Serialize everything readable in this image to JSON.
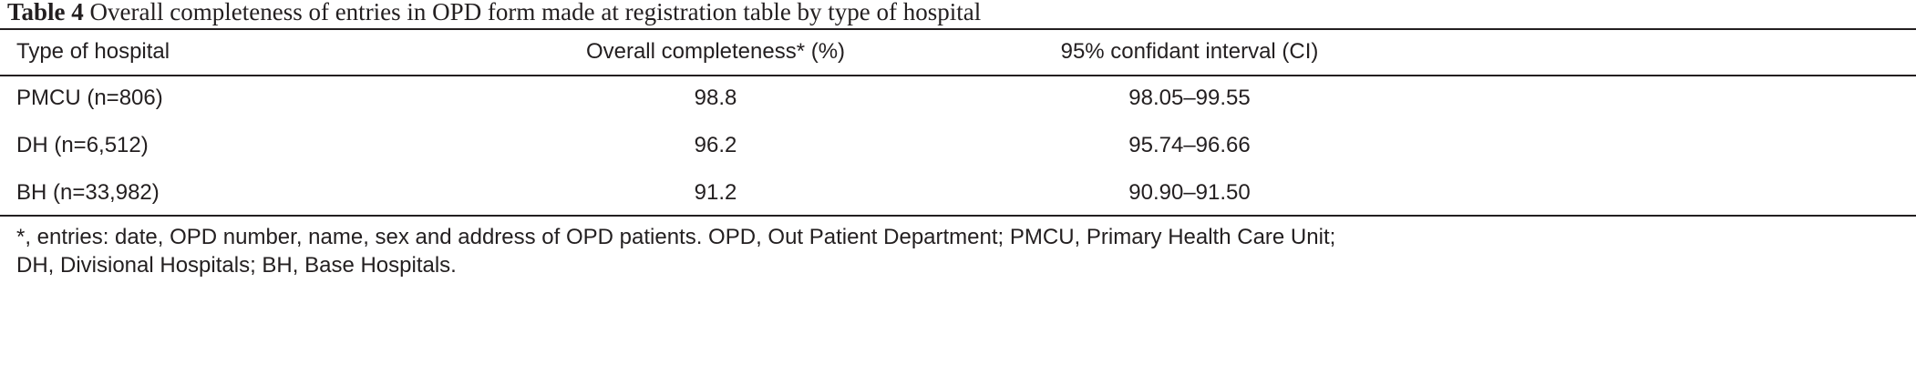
{
  "header": {
    "label": "Table 4",
    "title": "Overall completeness of entries in OPD form made at registration table by type of hospital"
  },
  "table": {
    "columns": [
      "Type of hospital",
      "Overall completeness* (%)",
      "95% confidant interval (CI)"
    ],
    "rows": [
      [
        "PMCU (n=806)",
        "98.8",
        "98.05–99.55"
      ],
      [
        "DH (n=6,512)",
        "96.2",
        "95.74–96.66"
      ],
      [
        "BH (n=33,982)",
        "91.2",
        "90.90–91.50"
      ]
    ]
  },
  "footnote": [
    "*, entries: date, OPD number, name, sex and address of OPD patients. OPD, Out Patient Department; PMCU, Primary Health Care Unit;",
    "DH, Divisional Hospitals; BH, Base Hospitals."
  ]
}
